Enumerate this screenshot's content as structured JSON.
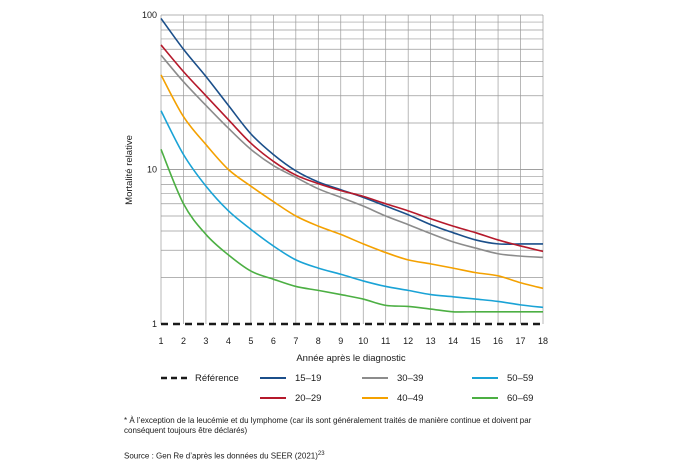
{
  "chart_data": {
    "type": "line",
    "xlabel": "Année après le diagnostic",
    "ylabel": "Mortalité relative",
    "x": [
      1,
      2,
      3,
      4,
      5,
      6,
      7,
      8,
      9,
      10,
      11,
      12,
      13,
      14,
      15,
      16,
      17,
      18
    ],
    "x_ticks": [
      "1",
      "2",
      "3",
      "4",
      "5",
      "6",
      "7",
      "8",
      "9",
      "10",
      "11",
      "12",
      "13",
      "14",
      "15",
      "16",
      "17",
      "18"
    ],
    "y_scale": "log",
    "ylim": [
      1,
      100
    ],
    "y_ticks": [
      "1",
      "10",
      "100"
    ],
    "grid": true,
    "legend_position": "bottom",
    "reference": {
      "name": "Référence",
      "value": 1,
      "color": "#1a1a1a"
    },
    "series": [
      {
        "name": "15–19",
        "color": "#1b4f8a",
        "values": [
          95,
          60,
          40,
          26,
          17,
          12.5,
          9.8,
          8.3,
          7.4,
          6.6,
          5.8,
          5.1,
          4.4,
          3.9,
          3.5,
          3.3,
          3.3,
          3.3
        ]
      },
      {
        "name": "20–29",
        "color": "#b5192b",
        "values": [
          64,
          43,
          30,
          21,
          14.8,
          11.3,
          9.2,
          8.1,
          7.3,
          6.7,
          6.0,
          5.4,
          4.8,
          4.3,
          3.9,
          3.5,
          3.2,
          2.95
        ]
      },
      {
        "name": "30–39",
        "color": "#8c8c8c",
        "values": [
          55,
          37,
          26,
          18.5,
          13.5,
          10.6,
          8.9,
          7.5,
          6.6,
          5.8,
          5.0,
          4.4,
          3.85,
          3.4,
          3.1,
          2.85,
          2.75,
          2.7
        ]
      },
      {
        "name": "40–49",
        "color": "#f4a100",
        "values": [
          41,
          22,
          14.5,
          10,
          7.8,
          6.2,
          5.0,
          4.3,
          3.8,
          3.3,
          2.9,
          2.6,
          2.45,
          2.3,
          2.15,
          2.05,
          1.85,
          1.7
        ]
      },
      {
        "name": "50–59",
        "color": "#1aa3d6",
        "values": [
          24,
          12.5,
          7.8,
          5.4,
          4.1,
          3.2,
          2.6,
          2.3,
          2.1,
          1.9,
          1.75,
          1.65,
          1.55,
          1.5,
          1.45,
          1.4,
          1.33,
          1.28
        ]
      },
      {
        "name": "60–69",
        "color": "#4caf43",
        "values": [
          13.5,
          6.0,
          3.8,
          2.8,
          2.2,
          1.95,
          1.75,
          1.65,
          1.55,
          1.45,
          1.32,
          1.3,
          1.25,
          1.2,
          1.2,
          1.2,
          1.2,
          1.2
        ]
      }
    ]
  },
  "footnote": {
    "note": "* À l’exception de la leucémie et du lymphome (car ils sont généralement traités de manière continue et doivent par conséquent toujours être déclarés)",
    "source": "Source : Gen Re d’après les données du SEER (2021)",
    "source_ref": "23"
  }
}
